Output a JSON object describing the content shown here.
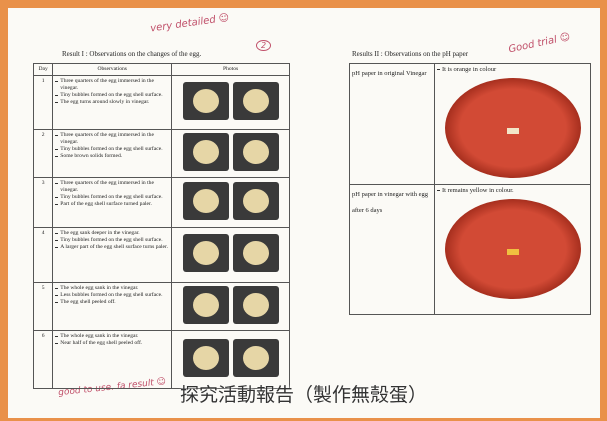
{
  "annotations": {
    "top_left": "very detailed ☺",
    "circled": "2",
    "top_right": "Good trial ☺",
    "bottom_left": "good to use. fa result ☺"
  },
  "result1": {
    "title": "Result I : Observations on the changes of the egg.",
    "headers": [
      "Day",
      "Observations",
      "Photos"
    ],
    "rows": [
      {
        "day": "1",
        "observations": [
          "Three quarters of the egg immersed in the vinegar.",
          "Tiny bubbles formed on the egg shell surface.",
          "The egg turns around slowly in vinegar."
        ]
      },
      {
        "day": "2",
        "observations": [
          "Three quarters of the egg immersed in the vinegar.",
          "Tiny bubbles formed on the egg shell surface.",
          "Some brown solids formed."
        ]
      },
      {
        "day": "3",
        "observations": [
          "Three quarters of the egg immersed in the vinegar.",
          "Tiny bubbles formed on the egg shell surface.",
          "Part of the egg shell surface turned paler."
        ]
      },
      {
        "day": "4",
        "observations": [
          "The egg sank deeper in the vinegar.",
          "Tiny bubbles formed on the egg shell surface.",
          "A larger part of the egg shell surface turns paler."
        ]
      },
      {
        "day": "5",
        "observations": [
          "The whole egg sank in the vinegar.",
          "Less bubbles formed on the egg shell surface.",
          "The egg shell peeled off."
        ]
      },
      {
        "day": "6",
        "observations": [
          "The whole egg sank in the vinegar.",
          "Near half of the egg shell peeled off."
        ]
      }
    ]
  },
  "result2": {
    "title": "Results II : Observations on the pH paper",
    "rows": [
      {
        "label": "pH paper in original Vinegar",
        "observation": "It is orange in colour"
      },
      {
        "label": "pH paper in vinegar with egg after 6 days",
        "observation": "It remains yellow in colour."
      }
    ]
  },
  "caption": "探究活動報告（製作無殼蛋）"
}
